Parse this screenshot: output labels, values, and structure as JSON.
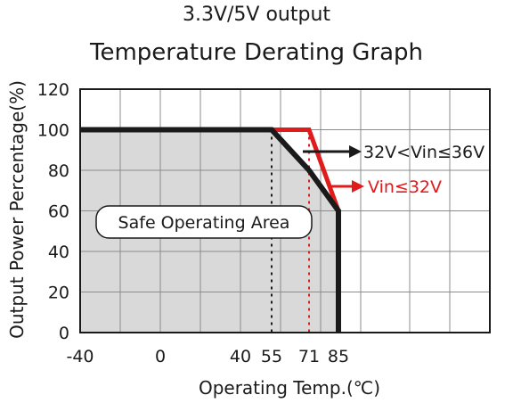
{
  "chart_data": {
    "type": "line",
    "title": "3.3V/5V output",
    "subtitle": "Temperature Derating Graph",
    "xlabel": "Operating Temp.(℃)",
    "ylabel": "Output Power Percentage(%)",
    "ylim": [
      0,
      120
    ],
    "grid": true,
    "x_ticks": [
      "-40",
      "0",
      "40",
      "55",
      "71",
      "85"
    ],
    "y_ticks": [
      "0",
      "20",
      "40",
      "60",
      "80",
      "100",
      "120"
    ],
    "area_label": "Safe Operating Area",
    "series": [
      {
        "name": "32V<Vin≤36V",
        "color": "#1a1a1a",
        "x": [
          -40,
          55,
          71,
          85,
          85
        ],
        "y": [
          100,
          100,
          80,
          60,
          0
        ]
      },
      {
        "name": "Vin≤32V",
        "color": "#e01b1b",
        "x": [
          -40,
          71,
          85,
          85
        ],
        "y": [
          100,
          100,
          60,
          0
        ]
      }
    ],
    "colors": {
      "area_fill": "#d9d9d9",
      "grid": "#8c8c8c",
      "marker_black": "#1a1a1a",
      "marker_red": "#e01b1b"
    }
  }
}
